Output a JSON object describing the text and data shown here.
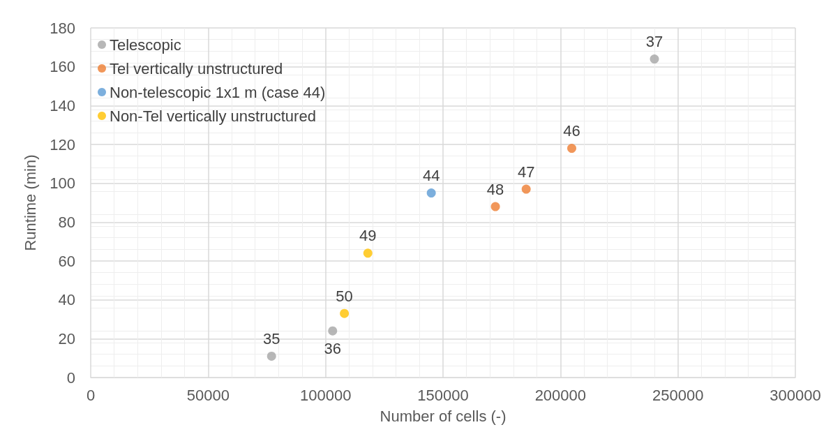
{
  "chart_data": {
    "type": "scatter",
    "xlabel": "Number of cells (-)",
    "ylabel": "Runtime (min)",
    "xlim": [
      0,
      300000
    ],
    "xticks": [
      0,
      50000,
      100000,
      150000,
      200000,
      250000,
      300000
    ],
    "ylim": [
      0,
      180
    ],
    "yticks": [
      0,
      20,
      40,
      60,
      80,
      100,
      120,
      140,
      160,
      180
    ],
    "grid": true,
    "legend": "top left",
    "marker": "circle",
    "series": [
      {
        "name": "Telescopic",
        "color": "#a5a5a5",
        "x": [
          77000,
          103000,
          240000
        ],
        "values": [
          11,
          24,
          164
        ]
      },
      {
        "name": "Tel vertically unstructured",
        "color": "#ed7d31",
        "x": [
          204800,
          185400,
          172300
        ],
        "values": [
          118,
          97,
          88
        ]
      },
      {
        "name": "Non-telescopic 1x1 m (case 44)",
        "color": "#5b9bd5",
        "x": [
          145000
        ],
        "values": [
          95
        ]
      },
      {
        "name": "Non-Tel vertically unstructured",
        "color": "#ffc000",
        "x": [
          118000,
          108000
        ],
        "values": [
          64,
          33
        ]
      }
    ],
    "annotations": [
      {
        "text": "35",
        "x": 77000,
        "y": 11
      },
      {
        "text": "36",
        "x": 103000,
        "y": 24
      },
      {
        "text": "37",
        "x": 240000,
        "y": 164
      },
      {
        "text": "46",
        "x": 204800,
        "y": 118
      },
      {
        "text": "47",
        "x": 185400,
        "y": 97
      },
      {
        "text": "48",
        "x": 172300,
        "y": 88
      },
      {
        "text": "44",
        "x": 145000,
        "y": 95
      },
      {
        "text": "49",
        "x": 118000,
        "y": 64
      },
      {
        "text": "50",
        "x": 108000,
        "y": 33
      }
    ]
  }
}
